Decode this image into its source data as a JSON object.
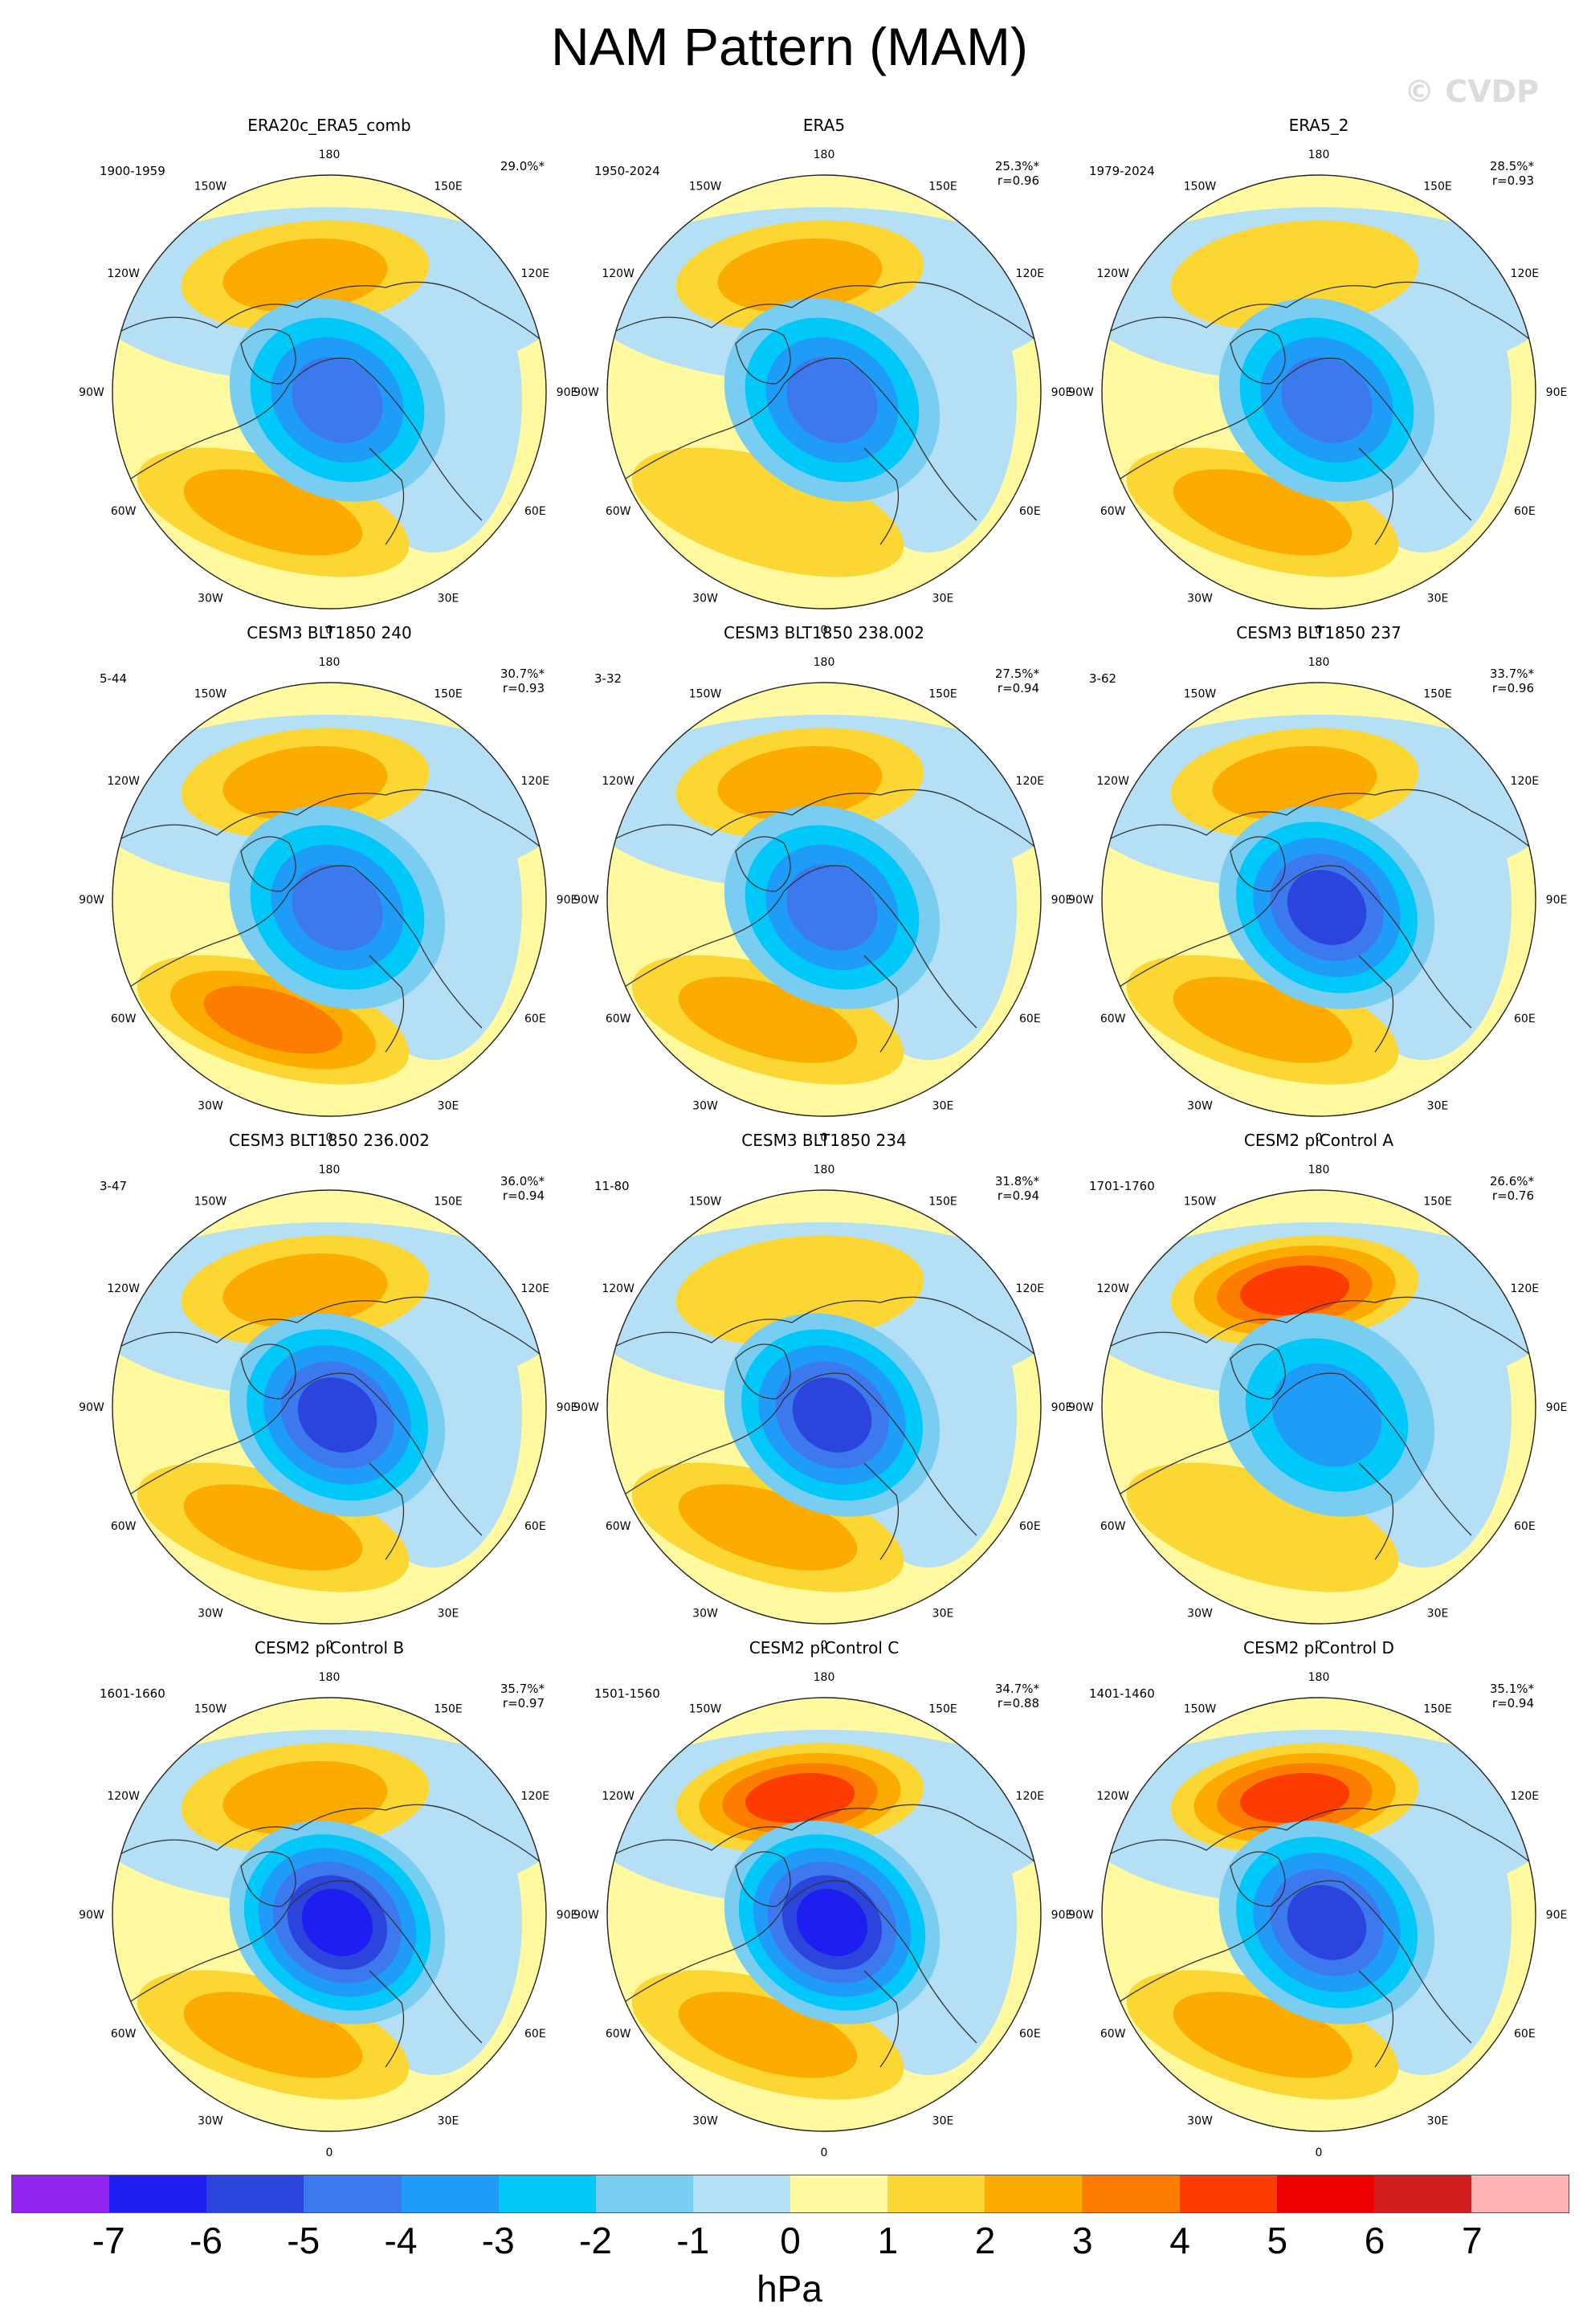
{
  "title": "NAM Pattern (MAM)",
  "watermark": "© CVDP",
  "chart_data": {
    "type": "heatmap",
    "title": "NAM Pattern (MAM)",
    "projection": "Northern Hemisphere polar stereographic",
    "colorbar": {
      "unit": "hPa",
      "ticks": [
        "-7",
        "-6",
        "-5",
        "-4",
        "-3",
        "-2",
        "-1",
        "0",
        "1",
        "2",
        "3",
        "4",
        "5",
        "6",
        "7"
      ],
      "colors": [
        "#9024f0",
        "#1e1ef0",
        "#2a44dc",
        "#3c78ee",
        "#1e9cf8",
        "#00c8f8",
        "#78cdf0",
        "#b4dff4",
        "#fff9a0",
        "#fcd632",
        "#fcac00",
        "#fc7d00",
        "#fc3c00",
        "#ec0000",
        "#d21e1e",
        "#ffb4b4"
      ]
    },
    "lon_labels": [
      "180",
      "150E",
      "120E",
      "90E",
      "60E",
      "30E",
      "0",
      "30W",
      "60W",
      "90W",
      "120W",
      "150W"
    ],
    "panels": [
      {
        "title": "ERA20c_ERA5_comb",
        "period": "1900-1959",
        "pct": "29.0%*",
        "r": "",
        "low_hpa": -4.6,
        "high_hpa": 2.3,
        "pacific_hpa": 2.2
      },
      {
        "title": "ERA5",
        "period": "1950-2024",
        "pct": "25.3%*",
        "r": "r=0.96",
        "low_hpa": -4.2,
        "high_hpa": 1.8,
        "pacific_hpa": 2.1
      },
      {
        "title": "ERA5_2",
        "period": "1979-2024",
        "pct": "28.5%*",
        "r": "r=0.93",
        "low_hpa": -4.5,
        "high_hpa": 2.3,
        "pacific_hpa": 1.9
      },
      {
        "title": "CESM3 BLT1850 240",
        "period": "5-44",
        "pct": "30.7%*",
        "r": "r=0.93",
        "low_hpa": -4.3,
        "high_hpa": 3.0,
        "pacific_hpa": 2.2
      },
      {
        "title": "CESM3 BLT1850 238.002",
        "period": "3-32",
        "pct": "27.5%*",
        "r": "r=0.94",
        "low_hpa": -4.4,
        "high_hpa": 2.5,
        "pacific_hpa": 2.8
      },
      {
        "title": "CESM3 BLT1850 237",
        "period": "3-62",
        "pct": "33.7%*",
        "r": "r=0.96",
        "low_hpa": -5.5,
        "high_hpa": 2.4,
        "pacific_hpa": 2.2
      },
      {
        "title": "CESM3 BLT1850 236.002",
        "period": "3-47",
        "pct": "36.0%*",
        "r": "r=0.94",
        "low_hpa": -5.3,
        "high_hpa": 2.8,
        "pacific_hpa": 2.3
      },
      {
        "title": "CESM3 BLT1850 234",
        "period": "11-80",
        "pct": "31.8%*",
        "r": "r=0.94",
        "low_hpa": -5.4,
        "high_hpa": 2.3,
        "pacific_hpa": 1.8
      },
      {
        "title": "CESM2 piControl A",
        "period": "1701-1760",
        "pct": "26.6%*",
        "r": "r=0.76",
        "low_hpa": -3.2,
        "high_hpa": 1.9,
        "pacific_hpa": 4.6
      },
      {
        "title": "CESM2 piControl B",
        "period": "1601-1660",
        "pct": "35.7%*",
        "r": "r=0.97",
        "low_hpa": -6.3,
        "high_hpa": 2.3,
        "pacific_hpa": 2.8
      },
      {
        "title": "CESM2 piControl C",
        "period": "1501-1560",
        "pct": "34.7%*",
        "r": "r=0.88",
        "low_hpa": -6.2,
        "high_hpa": 2.0,
        "pacific_hpa": 4.5
      },
      {
        "title": "CESM2 piControl D",
        "period": "1401-1460",
        "pct": "35.1%*",
        "r": "r=0.94",
        "low_hpa": -5.4,
        "high_hpa": 2.2,
        "pacific_hpa": 4.3
      }
    ]
  }
}
